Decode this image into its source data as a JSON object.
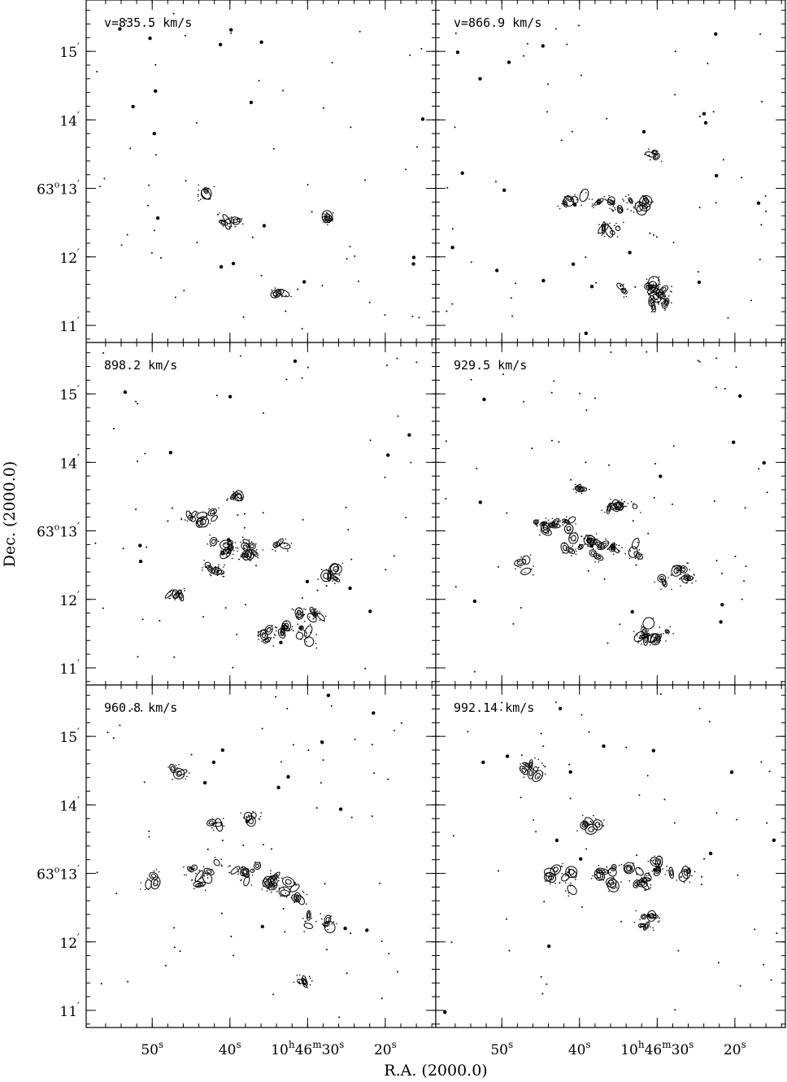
{
  "chart_data": {
    "type": "contour",
    "description_axes": {
      "xlabel": "R.A. (2000.0)",
      "ylabel": "Dec. (2000.0)"
    },
    "x_ticks": [
      {
        "value_s": 50,
        "sup": "s",
        "prefix": ""
      },
      {
        "value_s": 40,
        "sup": "s",
        "prefix": ""
      },
      {
        "value_s": 30,
        "sup": "s",
        "prefix": "10h46m"
      },
      {
        "value_s": 20,
        "sup": "s",
        "prefix": ""
      }
    ],
    "x_tick_text": [
      "50",
      "40",
      "10",
      "h",
      "46",
      "m",
      "30",
      "20",
      "s"
    ],
    "y_ticks": [
      {
        "value_arcmin": 15,
        "text": "15"
      },
      {
        "value_arcmin": 14,
        "text": "14"
      },
      {
        "value_arcmin": 13,
        "text": "63",
        "deg": "o",
        "arcmin": "13"
      },
      {
        "value_arcmin": 12,
        "text": "12"
      },
      {
        "value_arcmin": 11,
        "text": "11"
      }
    ],
    "y_tick_text": {
      "deg": "63",
      "deg_sym": "o",
      "prime": "′"
    },
    "xlim_s": [
      58.5,
      13.5
    ],
    "ylim_arcmin": [
      10.75,
      15.75
    ],
    "panels": [
      {
        "label": "v=835.5 km/s",
        "velocity": 835.5,
        "blobs": [
          [
            27.5,
            12.6,
            0.3,
            0.1
          ],
          [
            33.5,
            11.45,
            0.3,
            0.1
          ],
          [
            43,
            12.95,
            0.2,
            0.08
          ],
          [
            40,
            12.5,
            0.5,
            0.15
          ]
        ]
      },
      {
        "label": "v=866.9 km/s",
        "velocity": 866.9,
        "blobs": [
          [
            34.5,
            12.75,
            1.2,
            0.2
          ],
          [
            40.5,
            12.85,
            0.5,
            0.18
          ],
          [
            32,
            11.55,
            1.0,
            0.2
          ],
          [
            30,
            11.35,
            0.6,
            0.18
          ],
          [
            36,
            12.4,
            0.5,
            0.12
          ],
          [
            30.5,
            13.5,
            0.2,
            0.08
          ]
        ]
      },
      {
        "label": "898.2 km/s",
        "velocity": 898.2,
        "blobs": [
          [
            37,
            12.75,
            1.8,
            0.25
          ],
          [
            43,
            13.2,
            0.8,
            0.2
          ],
          [
            33,
            11.5,
            1.2,
            0.25
          ],
          [
            30,
            11.8,
            0.6,
            0.2
          ],
          [
            42,
            12.45,
            0.5,
            0.15
          ],
          [
            47,
            12.1,
            0.4,
            0.15
          ],
          [
            39,
            13.5,
            0.3,
            0.1
          ],
          [
            27.5,
            12.35,
            0.5,
            0.2
          ]
        ]
      },
      {
        "label": "929.5 km/s",
        "velocity": 929.5,
        "blobs": [
          [
            37,
            12.75,
            1.8,
            0.3
          ],
          [
            43,
            13.1,
            1.0,
            0.25
          ],
          [
            27.5,
            12.35,
            0.8,
            0.35
          ],
          [
            30,
            11.55,
            1.0,
            0.3
          ],
          [
            34.5,
            13.3,
            0.6,
            0.2
          ],
          [
            47,
            12.5,
            0.3,
            0.3
          ],
          [
            40,
            13.6,
            0.3,
            0.1
          ]
        ]
      },
      {
        "label": "960.8 km/s",
        "velocity": 960.8,
        "blobs": [
          [
            43.5,
            13.0,
            0.8,
            0.35
          ],
          [
            36.5,
            13.0,
            1.0,
            0.3
          ],
          [
            32.5,
            12.75,
            0.8,
            0.3
          ],
          [
            28.5,
            12.3,
            0.5,
            0.25
          ],
          [
            31,
            11.4,
            0.3,
            0.15
          ],
          [
            46.5,
            14.5,
            0.3,
            0.1
          ],
          [
            50,
            12.9,
            0.3,
            0.15
          ],
          [
            42,
            13.7,
            0.3,
            0.1
          ],
          [
            37.5,
            13.8,
            0.3,
            0.1
          ]
        ]
      },
      {
        "label": "992.14 km/s",
        "velocity": 992.14,
        "blobs": [
          [
            35,
            12.95,
            1.5,
            0.3
          ],
          [
            30.5,
            12.3,
            0.5,
            0.35
          ],
          [
            43,
            12.9,
            0.8,
            0.4
          ],
          [
            45.5,
            14.5,
            0.6,
            0.2
          ],
          [
            38,
            13.7,
            0.5,
            0.15
          ],
          [
            29,
            13.1,
            0.5,
            0.2
          ],
          [
            26,
            13.0,
            0.3,
            0.1
          ]
        ]
      }
    ]
  }
}
